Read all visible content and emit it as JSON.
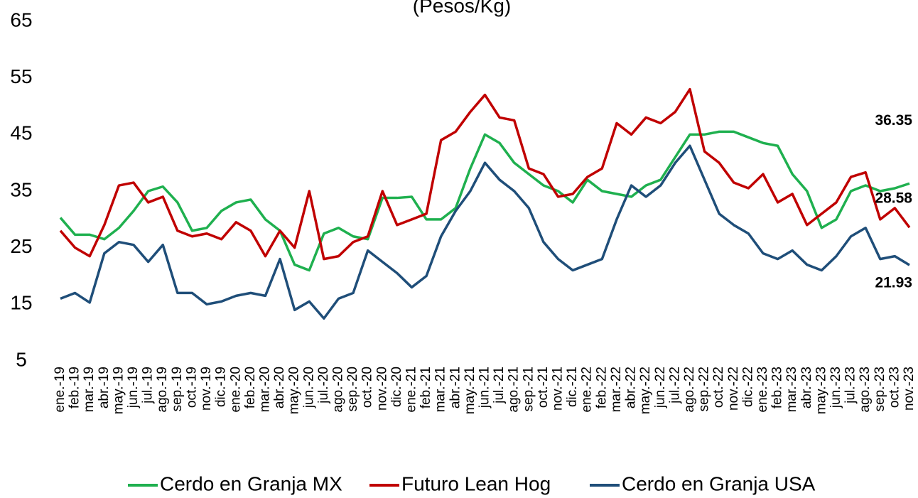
{
  "chart_data": {
    "type": "line",
    "title": "(Pesos/Kg)",
    "categories": [
      "ene.-19",
      "feb.-19",
      "mar.-19",
      "abr.-19",
      "may.-19",
      "jun.-19",
      "jul.-19",
      "ago.-19",
      "sep.-19",
      "oct.-19",
      "nov.-19",
      "dic.-19",
      "ene.-20",
      "feb.-20",
      "mar.-20",
      "abr.-20",
      "may.-20",
      "jun.-20",
      "jul.-20",
      "ago.-20",
      "sep.-20",
      "oct.-20",
      "nov.-20",
      "dic.-20",
      "ene.-21",
      "feb.-21",
      "mar.-21",
      "abr.-21",
      "may.-21",
      "jun.-21",
      "jul.-21",
      "ago.-21",
      "sep.-21",
      "oct.-21",
      "nov.-21",
      "dic.-21",
      "ene.-22",
      "feb.-22",
      "mar.-22",
      "abr.-22",
      "may.-22",
      "jun.-22",
      "jul.-22",
      "ago.-22",
      "sep.-22",
      "oct.-22",
      "nov.-22",
      "dic.-22",
      "ene.-23",
      "feb.-23",
      "mar.-23",
      "abr.-23",
      "may.-23",
      "jun.-23",
      "jul.-23",
      "ago.-23",
      "sep.-23",
      "oct.-23",
      "nov.-23"
    ],
    "series": [
      {
        "name": "Cerdo en Granja MX",
        "color": "#1fb04f",
        "values": [
          30.3,
          27.3,
          27.3,
          26.5,
          28.5,
          31.5,
          35,
          35.8,
          33,
          28,
          28.5,
          31.5,
          33,
          33.5,
          30,
          28,
          22,
          21,
          27.5,
          28.5,
          27,
          26.5,
          33.8,
          33.8,
          34,
          30,
          30,
          32,
          39,
          45,
          43.5,
          40,
          38,
          36,
          35,
          33,
          37,
          35,
          34.5,
          34,
          36,
          37,
          41,
          45,
          45,
          45.5,
          45.5,
          44.5,
          43.5,
          43,
          38,
          35,
          28.5,
          30,
          35,
          36,
          35,
          35.5,
          36.35
        ]
      },
      {
        "name": "Futuro Lean Hog",
        "color": "#c00000",
        "values": [
          28,
          25,
          23.5,
          29,
          36,
          36.5,
          33,
          34,
          28,
          27,
          27.5,
          26.5,
          29.5,
          28,
          23.5,
          28,
          25,
          35,
          23,
          23.5,
          26,
          27,
          35,
          29,
          30,
          31,
          44,
          45.5,
          49,
          52,
          48,
          47.5,
          39,
          38,
          34,
          34.5,
          37.5,
          39,
          47,
          45,
          48,
          47,
          49,
          53,
          42,
          40,
          36.5,
          35.5,
          38,
          33,
          34.5,
          29,
          31,
          33,
          37.5,
          38.3,
          30,
          32,
          28.58
        ]
      },
      {
        "name": "Cerdo en Granja USA",
        "color": "#1f4e79",
        "values": [
          16,
          17,
          15.3,
          24,
          26,
          25.5,
          22.5,
          25.5,
          17,
          17,
          15,
          15.5,
          16.5,
          17,
          16.5,
          23,
          14,
          15.5,
          12.5,
          16,
          17,
          24.5,
          22.5,
          20.5,
          18,
          20,
          27,
          31.5,
          35,
          40,
          37,
          35,
          32,
          26,
          23,
          21,
          22,
          23,
          30,
          36,
          34,
          36,
          40,
          43,
          37,
          31,
          29,
          27.5,
          24,
          23,
          24.5,
          22,
          21,
          23.5,
          27,
          28.5,
          23,
          23.5,
          21.93
        ]
      }
    ],
    "ylim": [
      5,
      65
    ],
    "yticks": [
      5,
      15,
      25,
      35,
      45,
      55,
      65
    ],
    "legend": "bottom"
  }
}
